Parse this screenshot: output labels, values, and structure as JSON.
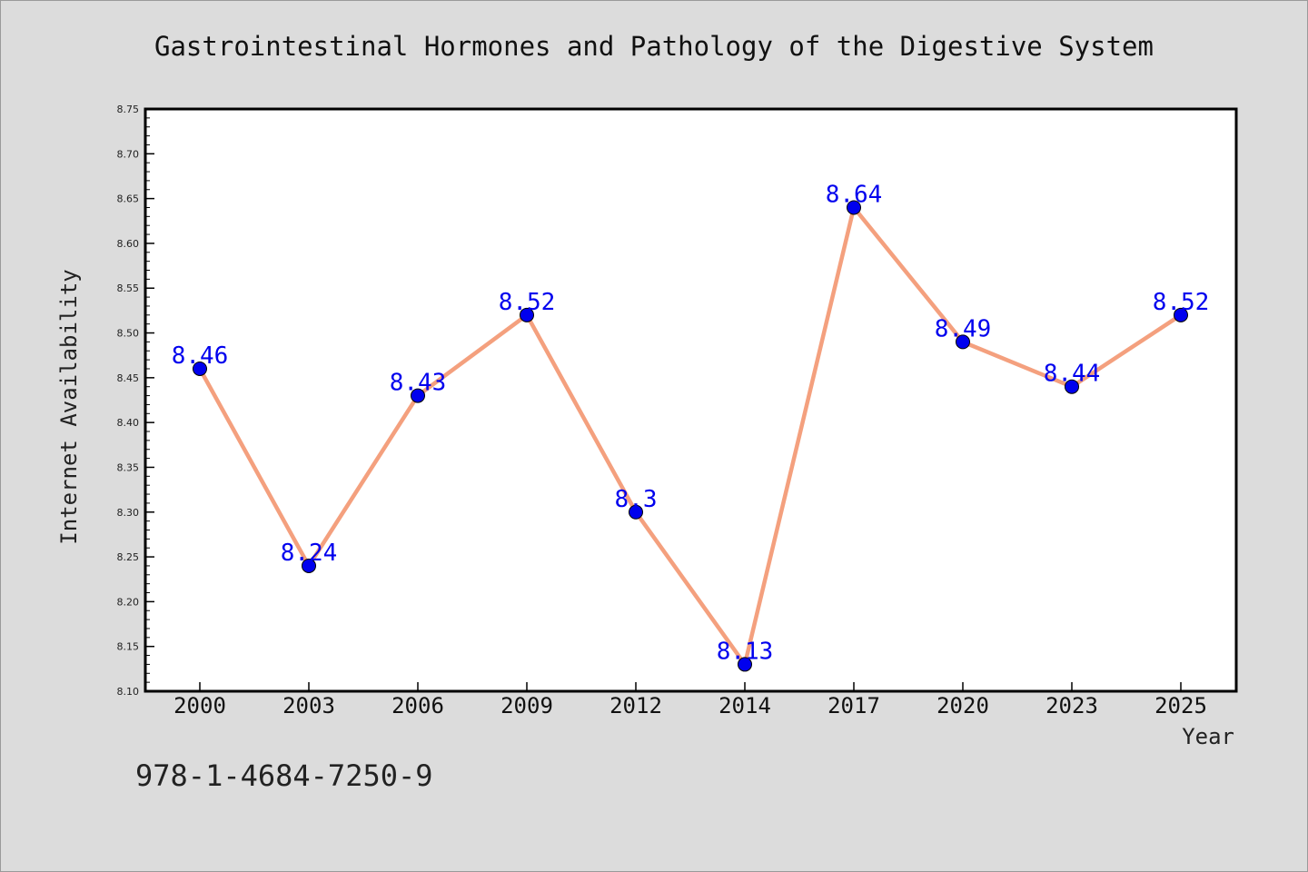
{
  "chart_data": {
    "type": "line",
    "title": "Gastrointestinal Hormones and Pathology of the Digestive System",
    "xlabel": "Year",
    "ylabel": "Internet Availability",
    "categories": [
      "2000",
      "2003",
      "2006",
      "2009",
      "2012",
      "2014",
      "2017",
      "2020",
      "2023",
      "2025"
    ],
    "series": [
      {
        "values": [
          8.46,
          8.24,
          8.43,
          8.52,
          8.3,
          8.13,
          8.64,
          8.49,
          8.44,
          8.52
        ],
        "labels": [
          "8.46",
          "8.24",
          "8.43",
          "8.52",
          "8.3",
          "8.13",
          "8.64",
          "8.49",
          "8.44",
          "8.52"
        ],
        "line_color": "#f4a07e",
        "marker_color": "#0000ee"
      }
    ],
    "ylim": [
      8.1,
      8.75
    ],
    "yticks": [
      "8.10",
      "8.15",
      "8.20",
      "8.25",
      "8.30",
      "8.35",
      "8.40",
      "8.45",
      "8.50",
      "8.55",
      "8.60",
      "8.65",
      "8.70",
      "8.75"
    ],
    "grid": false,
    "legend": "none"
  },
  "footer": {
    "code": "978-1-4684-7250-9"
  },
  "colors": {
    "background": "#dcdcdc",
    "plot_background": "#ffffff",
    "label_color": "#0000ee"
  }
}
